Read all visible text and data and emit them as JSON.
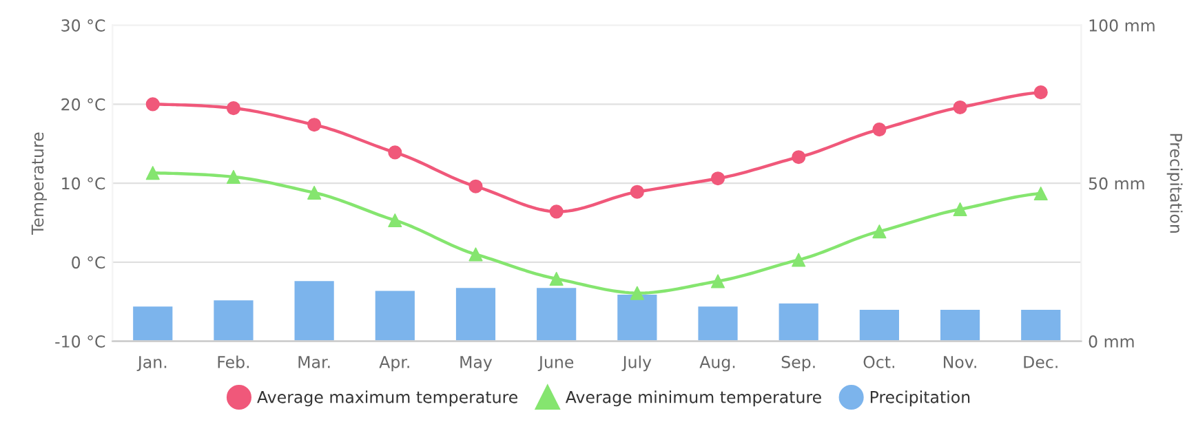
{
  "chart_data": {
    "type": "line",
    "ylabel": "Temperature",
    "y2label": "Precipitation",
    "categories": [
      "Jan.",
      "Feb.",
      "Mar.",
      "Apr.",
      "May",
      "June",
      "July",
      "Aug.",
      "Sep.",
      "Oct.",
      "Nov.",
      "Dec."
    ],
    "series": [
      {
        "name": "Average maximum temperature",
        "color": "#f0587a",
        "marker": "circle",
        "values": [
          20.0,
          19.5,
          17.4,
          13.9,
          9.6,
          6.4,
          8.9,
          10.6,
          13.3,
          16.8,
          19.6,
          21.5
        ]
      },
      {
        "name": "Average minimum temperature",
        "color": "#85e56f",
        "marker": "triangle",
        "values": [
          11.3,
          10.8,
          8.8,
          5.3,
          1.0,
          -2.1,
          -3.9,
          -2.4,
          0.3,
          3.9,
          6.7,
          8.7
        ]
      },
      {
        "name": "Precipitation",
        "type": "bar",
        "axis": "y2",
        "color": "#7cb4ec",
        "marker": "circle",
        "values": [
          11.1,
          13.1,
          19.2,
          16.1,
          17.0,
          17.0,
          14.9,
          11.1,
          12.1,
          10.1,
          10.1,
          10.1
        ]
      }
    ],
    "ylim": [
      -10,
      30
    ],
    "yticks": [
      {
        "value": -10,
        "label": "-10 °C"
      },
      {
        "value": 0,
        "label": "0 °C"
      },
      {
        "value": 10,
        "label": "10 °C"
      },
      {
        "value": 20,
        "label": "20 °C"
      },
      {
        "value": 30,
        "label": "30 °C"
      }
    ],
    "y2lim": [
      0,
      100
    ],
    "y2ticks": [
      {
        "value": 0,
        "label": "0 mm"
      },
      {
        "value": 50,
        "label": "50 mm"
      },
      {
        "value": 100,
        "label": "100 mm"
      }
    ],
    "grid": "y",
    "legend": "bottom"
  }
}
